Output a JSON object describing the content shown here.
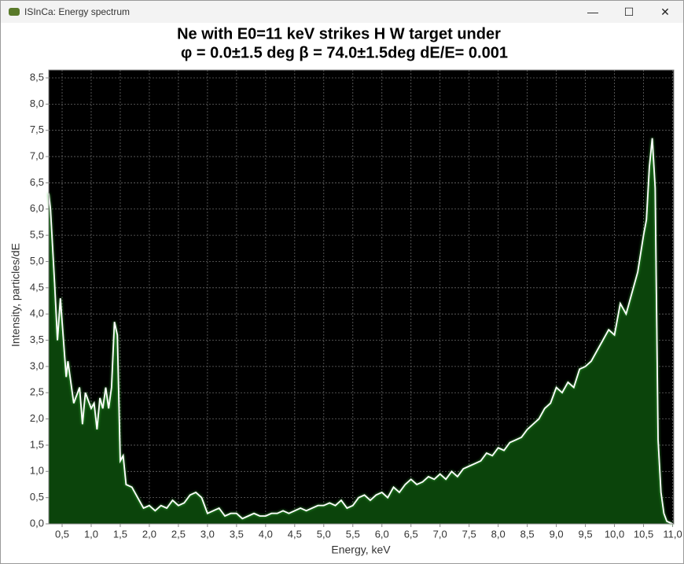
{
  "window": {
    "title": "ISInCa: Energy spectrum"
  },
  "chart_data": {
    "type": "area",
    "title": "Ne with E0=11 keV strikes  H W target under",
    "subtitle": "φ = 0.0±1.5 deg β = 74.0±1.5deg dE/E= 0.001",
    "x_label": "Energy, keV",
    "y_label": "Intensity, particles/dE",
    "x": [
      0.27,
      0.3,
      0.37,
      0.42,
      0.47,
      0.57,
      0.6,
      0.7,
      0.8,
      0.85,
      0.9,
      1.0,
      1.05,
      1.1,
      1.15,
      1.2,
      1.25,
      1.3,
      1.35,
      1.4,
      1.45,
      1.5,
      1.55,
      1.6,
      1.7,
      1.8,
      1.9,
      2.0,
      2.1,
      2.2,
      2.3,
      2.4,
      2.5,
      2.6,
      2.7,
      2.8,
      2.9,
      3.0,
      3.1,
      3.2,
      3.3,
      3.4,
      3.5,
      3.6,
      3.7,
      3.8,
      3.9,
      4.0,
      4.1,
      4.2,
      4.3,
      4.4,
      4.5,
      4.6,
      4.7,
      4.8,
      4.9,
      5.0,
      5.1,
      5.2,
      5.3,
      5.4,
      5.5,
      5.6,
      5.7,
      5.8,
      5.9,
      6.0,
      6.1,
      6.2,
      6.3,
      6.4,
      6.5,
      6.6,
      6.7,
      6.8,
      6.9,
      7.0,
      7.1,
      7.2,
      7.3,
      7.4,
      7.5,
      7.6,
      7.7,
      7.8,
      7.9,
      8.0,
      8.1,
      8.2,
      8.3,
      8.4,
      8.5,
      8.6,
      8.7,
      8.8,
      8.9,
      9.0,
      9.1,
      9.2,
      9.3,
      9.4,
      9.5,
      9.6,
      9.7,
      9.8,
      9.9,
      10.0,
      10.1,
      10.2,
      10.3,
      10.4,
      10.5,
      10.55,
      10.6,
      10.65,
      10.7,
      10.75,
      10.8,
      10.85,
      10.9,
      11.0
    ],
    "values": [
      6.3,
      6.0,
      4.6,
      3.5,
      4.3,
      2.8,
      3.1,
      2.3,
      2.6,
      1.9,
      2.5,
      2.2,
      2.3,
      1.8,
      2.4,
      2.2,
      2.6,
      2.2,
      2.6,
      3.85,
      3.6,
      1.2,
      1.3,
      0.75,
      0.7,
      0.5,
      0.3,
      0.35,
      0.25,
      0.35,
      0.3,
      0.45,
      0.35,
      0.4,
      0.55,
      0.6,
      0.5,
      0.2,
      0.25,
      0.3,
      0.15,
      0.2,
      0.2,
      0.1,
      0.15,
      0.2,
      0.15,
      0.15,
      0.2,
      0.2,
      0.25,
      0.2,
      0.25,
      0.3,
      0.25,
      0.3,
      0.35,
      0.35,
      0.4,
      0.35,
      0.45,
      0.3,
      0.35,
      0.5,
      0.55,
      0.45,
      0.55,
      0.6,
      0.5,
      0.7,
      0.6,
      0.75,
      0.85,
      0.75,
      0.8,
      0.9,
      0.85,
      0.95,
      0.85,
      1.0,
      0.9,
      1.05,
      1.1,
      1.15,
      1.2,
      1.35,
      1.3,
      1.45,
      1.4,
      1.55,
      1.6,
      1.65,
      1.8,
      1.9,
      2.0,
      2.2,
      2.3,
      2.6,
      2.5,
      2.7,
      2.6,
      2.95,
      3.0,
      3.1,
      3.3,
      3.5,
      3.7,
      3.6,
      4.2,
      4.0,
      4.4,
      4.8,
      5.5,
      5.8,
      6.8,
      7.35,
      6.4,
      1.6,
      0.6,
      0.2,
      0.05,
      0.0
    ],
    "color": "#0b440b",
    "line_color": "#ffffff",
    "background": "#000000",
    "xlim": [
      0.27,
      11.02
    ],
    "ylim": [
      0,
      8.65
    ],
    "xticks": [
      {
        "value": 0.5,
        "label": "0,5"
      },
      {
        "value": 1.0,
        "label": "1,0"
      },
      {
        "value": 1.5,
        "label": "1,5"
      },
      {
        "value": 2.0,
        "label": "2,0"
      },
      {
        "value": 2.5,
        "label": "2,5"
      },
      {
        "value": 3.0,
        "label": "3,0"
      },
      {
        "value": 3.5,
        "label": "3,5"
      },
      {
        "value": 4.0,
        "label": "4,0"
      },
      {
        "value": 4.5,
        "label": "4,5"
      },
      {
        "value": 5.0,
        "label": "5,0"
      },
      {
        "value": 5.5,
        "label": "5,5"
      },
      {
        "value": 6.0,
        "label": "6,0"
      },
      {
        "value": 6.5,
        "label": "6,5"
      },
      {
        "value": 7.0,
        "label": "7,0"
      },
      {
        "value": 7.5,
        "label": "7,5"
      },
      {
        "value": 8.0,
        "label": "8,0"
      },
      {
        "value": 8.5,
        "label": "8,5"
      },
      {
        "value": 9.0,
        "label": "9,0"
      },
      {
        "value": 9.5,
        "label": "9,5"
      },
      {
        "value": 10.0,
        "label": "10,0"
      },
      {
        "value": 10.5,
        "label": "10,5"
      },
      {
        "value": 11.0,
        "label": "11,0"
      }
    ],
    "yticks": [
      {
        "value": 0,
        "label": "0,0"
      },
      {
        "value": 0.5,
        "label": "0,5"
      },
      {
        "value": 1.0,
        "label": "1,0"
      },
      {
        "value": 1.5,
        "label": "1,5"
      },
      {
        "value": 2.0,
        "label": "2,0"
      },
      {
        "value": 2.5,
        "label": "2,5"
      },
      {
        "value": 3.0,
        "label": "3,0"
      },
      {
        "value": 3.5,
        "label": "3,5"
      },
      {
        "value": 4.0,
        "label": "4,0"
      },
      {
        "value": 4.5,
        "label": "4,5"
      },
      {
        "value": 5.0,
        "label": "5,0"
      },
      {
        "value": 5.5,
        "label": "5,5"
      },
      {
        "value": 6.0,
        "label": "6,0"
      },
      {
        "value": 6.5,
        "label": "6,5"
      },
      {
        "value": 7.0,
        "label": "7,0"
      },
      {
        "value": 7.5,
        "label": "7,5"
      },
      {
        "value": 8.0,
        "label": "8,0"
      },
      {
        "value": 8.5,
        "label": "8,5"
      }
    ],
    "grid": true
  }
}
